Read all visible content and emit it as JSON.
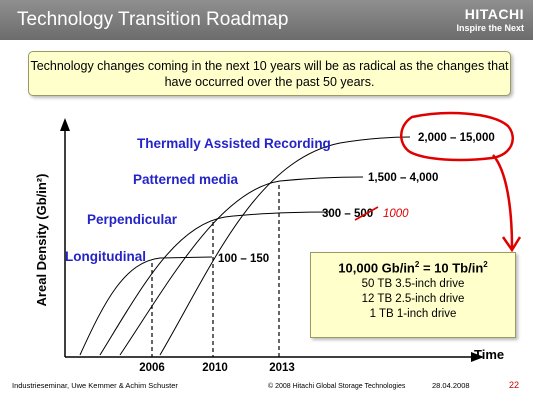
{
  "header": {
    "title": "Technology Transition Roadmap",
    "brand": "HITACHI",
    "tagline": "Inspire the Next"
  },
  "intro_text": "Technology changes coming in the next 10 years will be as radical as the changes that have occurred over the past 50 years.",
  "diagram": {
    "y_axis_label": "Areal Density (Gb/in²)",
    "x_axis_label": "Time",
    "technologies": [
      {
        "name": "Longitudinal",
        "range": "100 – 150"
      },
      {
        "name": "Perpendicular",
        "range": "300 – 500",
        "annotation": "1000"
      },
      {
        "name": "Patterned media",
        "range": "1,500 – 4,000"
      },
      {
        "name": "Thermally Assisted Recording",
        "range": "2,000 – 15,000"
      }
    ],
    "years": [
      "2006",
      "2010",
      "2013"
    ]
  },
  "callout": {
    "title_prefix": "10,000 Gb/in",
    "title_sup1": "2",
    "title_mid": " = 10 Tb/in",
    "title_sup2": "2",
    "lines": [
      "50 TB 3.5-inch drive",
      "12 TB 2.5-inch drive",
      "1 TB 1-inch drive"
    ]
  },
  "footer": {
    "left": "Industrieseminar, Uwe Kemmer & Achim Schuster",
    "middle": "© 2008 Hitachi Global Storage Technologies",
    "date": "28.04.2008",
    "page": "22"
  },
  "colors": {
    "header": "#7a7a7a",
    "box_fill": "#ffffcc",
    "label_blue": "#2424c8",
    "annotation_red": "#e00000"
  }
}
